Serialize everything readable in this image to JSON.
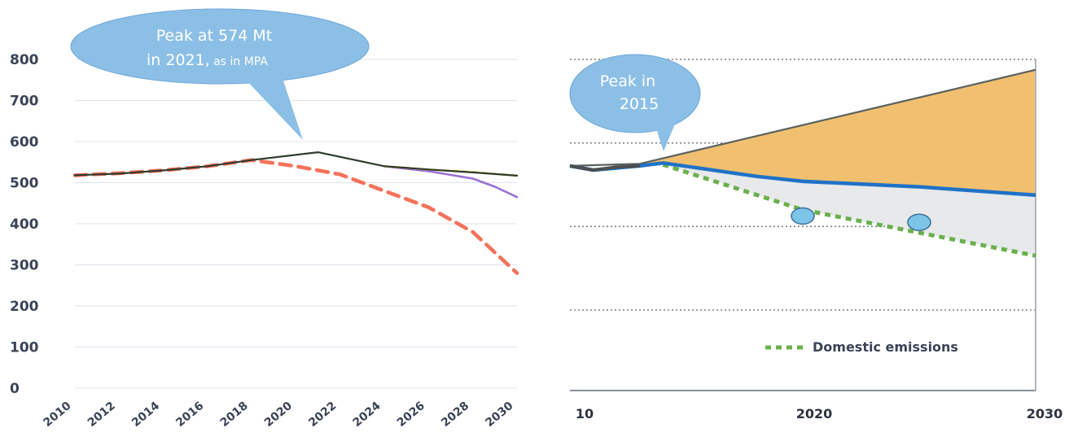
{
  "chart_data": [
    {
      "type": "line",
      "ylim": [
        0,
        800
      ],
      "yticks": [
        "0",
        "100",
        "200",
        "300",
        "400",
        "500",
        "600",
        "700",
        "800"
      ],
      "xticks": [
        "2010",
        "2012",
        "2014",
        "2016",
        "2018",
        "2020",
        "2022",
        "2024",
        "2026",
        "2028",
        "2030"
      ],
      "xlim": [
        2010,
        2030
      ],
      "grid": true,
      "annotation": {
        "line1": "Peak at 574 Mt",
        "line2_main": "in 2021,",
        "line2_small": " as in MPA"
      },
      "series": [
        {
          "color": "#2e3b2e",
          "style": "solid",
          "x": [
            2010,
            2012,
            2014,
            2016,
            2018,
            2021,
            2024,
            2026,
            2028,
            2030
          ],
          "y": [
            518,
            522,
            530,
            540,
            555,
            574,
            540,
            532,
            525,
            517
          ]
        },
        {
          "color": "#e8d84a",
          "style": "dashed",
          "x": [
            2024,
            2026,
            2028,
            2030
          ],
          "y": [
            540,
            532,
            526,
            517
          ]
        },
        {
          "color": "#9b6fd6",
          "style": "solid",
          "x": [
            2024,
            2026,
            2028,
            2029,
            2030
          ],
          "y": [
            540,
            528,
            510,
            490,
            465
          ]
        },
        {
          "color": "#f4725a",
          "style": "dashed",
          "x": [
            2010,
            2012,
            2014,
            2016,
            2018,
            2020,
            2022,
            2024,
            2026,
            2028,
            2030
          ],
          "y": [
            518,
            523,
            530,
            540,
            555,
            540,
            520,
            480,
            440,
            380,
            280
          ]
        }
      ]
    },
    {
      "type": "area",
      "xticks": [
        "10",
        "2020",
        "2030"
      ],
      "annotation": {
        "line1": "Peak in",
        "line2": "2015"
      },
      "legend": {
        "position": "bottom-right",
        "entries": [
          {
            "label": "Domestic emissions",
            "color": "#6ab04c",
            "style": "dotted"
          }
        ]
      },
      "grid": true,
      "series": [
        {
          "role": "upper-bound",
          "color": "#5a6060",
          "fill": "#f0c070",
          "x": [
            2010,
            2013,
            2030
          ],
          "y": [
            545,
            550,
            775
          ]
        },
        {
          "role": "blue-path",
          "color": "#1f72c7",
          "x": [
            2010,
            2011,
            2013,
            2014,
            2018,
            2020,
            2025,
            2030
          ],
          "y": [
            545,
            535,
            545,
            552,
            520,
            508,
            495,
            475
          ]
        },
        {
          "role": "dark-history",
          "color": "#4c4f4c",
          "x": [
            2010,
            2011,
            2012,
            2013
          ],
          "y": [
            545,
            535,
            542,
            545
          ]
        },
        {
          "role": "domestic-emissions",
          "color": "#6ab04c",
          "style": "dotted",
          "fill": "#e7e9ea",
          "x": [
            2014,
            2020,
            2025,
            2030
          ],
          "y": [
            548,
            440,
            385,
            330
          ]
        }
      ],
      "markers": [
        {
          "x": 2020,
          "y": 425,
          "color": "#7cc4e8"
        },
        {
          "x": 2025,
          "y": 410,
          "color": "#7cc4e8"
        }
      ]
    }
  ]
}
